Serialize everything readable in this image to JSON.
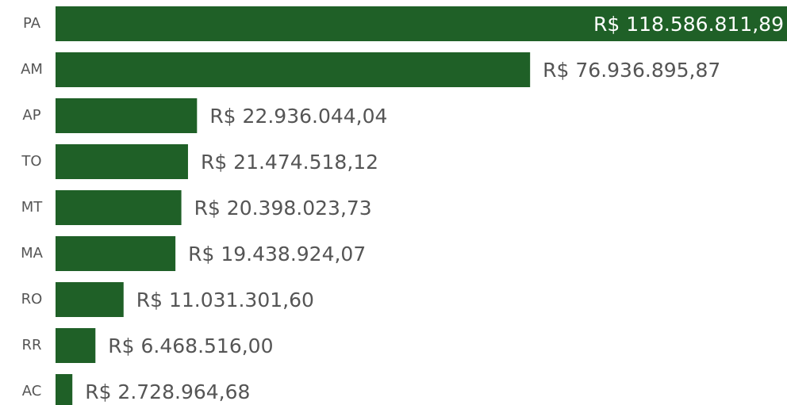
{
  "chart_data": {
    "type": "barh",
    "categories": [
      "PA",
      "AM",
      "AP",
      "TO",
      "MT",
      "MA",
      "RO",
      "RR",
      "AC"
    ],
    "values": [
      118586811.89,
      76936895.87,
      22936044.04,
      21474518.12,
      20398023.73,
      19438924.07,
      11031301.6,
      6468516.0,
      2728964.68
    ],
    "value_labels": [
      "R$ 118.586.811,89",
      "R$ 76.936.895,87",
      "R$ 22.936.044,04",
      "R$ 21.474.518,12",
      "R$ 20.398.023,73",
      "R$ 19.438.924,07",
      "R$ 11.031.301,60",
      "R$ 6.468.516,00",
      "R$ 2.728.964,68"
    ],
    "color": "#1f6027"
  }
}
